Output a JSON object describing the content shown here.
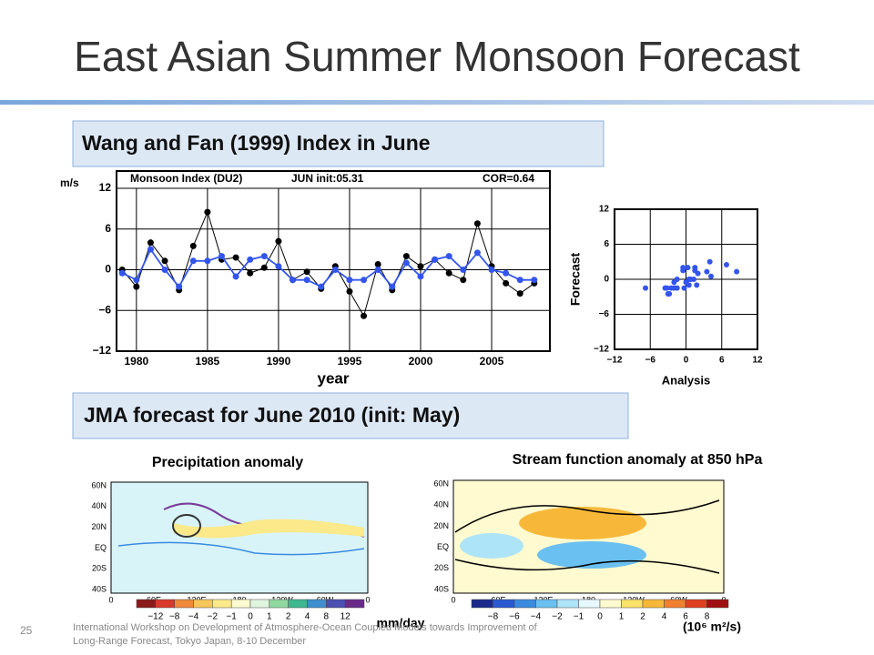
{
  "title": "East Asian Summer Monsoon Forecast",
  "heading_1": "Wang and Fan (1999) Index in June",
  "heading_2": "JMA forecast for June 2010  (init: May)",
  "chart_data": [
    {
      "type": "line",
      "title": "Monsoon Index (DU2)",
      "subtitle": "JUN init:05.31",
      "annotation": "COR=0.64",
      "y_label": "m/s",
      "x_label": "year",
      "x": [
        1979,
        1980,
        1981,
        1982,
        1983,
        1984,
        1985,
        1986,
        1987,
        1988,
        1989,
        1990,
        1991,
        1992,
        1993,
        1994,
        1995,
        1996,
        1997,
        1998,
        1999,
        2000,
        2001,
        2002,
        2003,
        2004,
        2005,
        2006,
        2007,
        2008
      ],
      "series": [
        {
          "name": "Analysis",
          "color": "#000000",
          "values": [
            0,
            -2.5,
            4,
            1.3,
            -3,
            3.5,
            8.5,
            1.5,
            1.8,
            -0.5,
            0.3,
            4.2,
            -1.5,
            -0.3,
            -2.8,
            0.5,
            -3.2,
            -6.8,
            0.8,
            -3,
            2,
            0.5,
            1.5,
            -0.5,
            -1.5,
            6.8,
            0.5,
            -2,
            -3.5,
            -2
          ]
        },
        {
          "name": "Forecast",
          "color": "#3355ee",
          "values": [
            -0.5,
            -1.5,
            3,
            0,
            -2.5,
            1.3,
            1.3,
            2,
            -1,
            1.5,
            2,
            0.5,
            -1.5,
            -1.5,
            -2.5,
            0,
            -1.5,
            -1.5,
            0,
            -2.5,
            1,
            -1,
            1.5,
            2,
            0,
            2.5,
            0,
            -0.5,
            -1.5,
            -1.5
          ]
        }
      ],
      "xlim": [
        1978.6,
        2009.1
      ],
      "ylim": [
        -12,
        12
      ],
      "xticks": [
        1980,
        1985,
        1990,
        1995,
        2000,
        2005
      ],
      "yticks": [
        {
          "value": -12,
          "label": "−12"
        },
        {
          "value": -6,
          "label": "−6"
        },
        0,
        6,
        12
      ],
      "grid": true
    },
    {
      "type": "scatter",
      "x_label": "Analysis",
      "y_label": "Forecast",
      "color": "#3355ee",
      "x": [
        0,
        -2.5,
        4,
        1.3,
        -3,
        3.5,
        8.5,
        1.5,
        1.8,
        -0.5,
        0.3,
        4.2,
        -1.5,
        -0.3,
        -2.8,
        0.5,
        -3.2,
        -6.8,
        0.8,
        -3,
        2,
        0.5,
        1.5,
        -0.5,
        -1.5,
        6.8,
        0.5,
        -2,
        -3.5,
        -2
      ],
      "values": [
        -0.5,
        -1.5,
        3,
        0,
        -2.5,
        1.3,
        1.3,
        2,
        -1,
        1.5,
        2,
        0.5,
        -1.5,
        -1.5,
        -2.5,
        0,
        -1.5,
        -1.5,
        0,
        -2.5,
        1,
        -1,
        1.5,
        2,
        0,
        2.5,
        0,
        -0.5,
        -1.5,
        -1.5
      ],
      "xlim": [
        -12,
        12
      ],
      "ylim": [
        -12,
        12
      ],
      "xticks": [
        {
          "value": -12,
          "label": "−12"
        },
        {
          "value": -6,
          "label": "−6"
        },
        0,
        6,
        12
      ],
      "yticks": [
        {
          "value": -12,
          "label": "−12"
        },
        {
          "value": -6,
          "label": "−6"
        },
        0,
        6,
        12
      ],
      "grid": true
    }
  ],
  "maps": [
    {
      "title": "Precipitation anomaly",
      "lat": [
        "60N",
        "40N",
        "20N",
        "EQ",
        "20S",
        "40S"
      ],
      "lon": [
        "0",
        "60E",
        "120E",
        "180",
        "120W",
        "60W",
        "0"
      ],
      "colorbar": [
        "−12",
        "−8",
        "−4",
        "−2",
        "−1",
        "0",
        "1",
        "2",
        "4",
        "8",
        "12"
      ],
      "colors": [
        "#8b1a1a",
        "#d93a2a",
        "#f08a3a",
        "#f7c65a",
        "#fbe98a",
        "#fffbd0",
        "#e0f5e0",
        "#8fd8a0",
        "#3fb890",
        "#3f8fd0",
        "#4a4fb0",
        "#6a2a8a"
      ],
      "unit": "mm/day"
    },
    {
      "title": "Stream function anomaly at 850 hPa",
      "lat": [
        "60N",
        "40N",
        "20N",
        "EQ",
        "20S",
        "40S"
      ],
      "lon": [
        "0",
        "60E",
        "120E",
        "180",
        "120W",
        "60W",
        "0"
      ],
      "colorbar": [
        "−8",
        "−6",
        "−4",
        "−2",
        "−1",
        "0",
        "1",
        "2",
        "4",
        "6",
        "8"
      ],
      "colors": [
        "#1a2a8a",
        "#2a5ad0",
        "#3a8ae0",
        "#6ac0f0",
        "#aee4f8",
        "#e8f8ff",
        "#fffad0",
        "#fbe26a",
        "#f7b83a",
        "#f08030",
        "#e04020",
        "#a01010"
      ],
      "unit": "(10⁶ m²/s)"
    }
  ],
  "footer": {
    "page": "25",
    "text_1": "International Workshop on Development of Atmosphere-Ocean Coupled Models towards Improvement of",
    "text_2": "Long-Range Forecast, Tokyo Japan, 8-10 December"
  }
}
